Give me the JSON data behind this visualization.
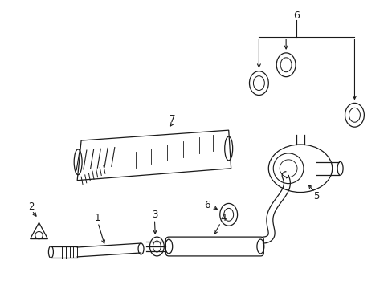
{
  "bg_color": "#ffffff",
  "line_color": "#1a1a1a",
  "figsize": [
    4.89,
    3.6
  ],
  "dpi": 100,
  "label_fs": 8.5
}
